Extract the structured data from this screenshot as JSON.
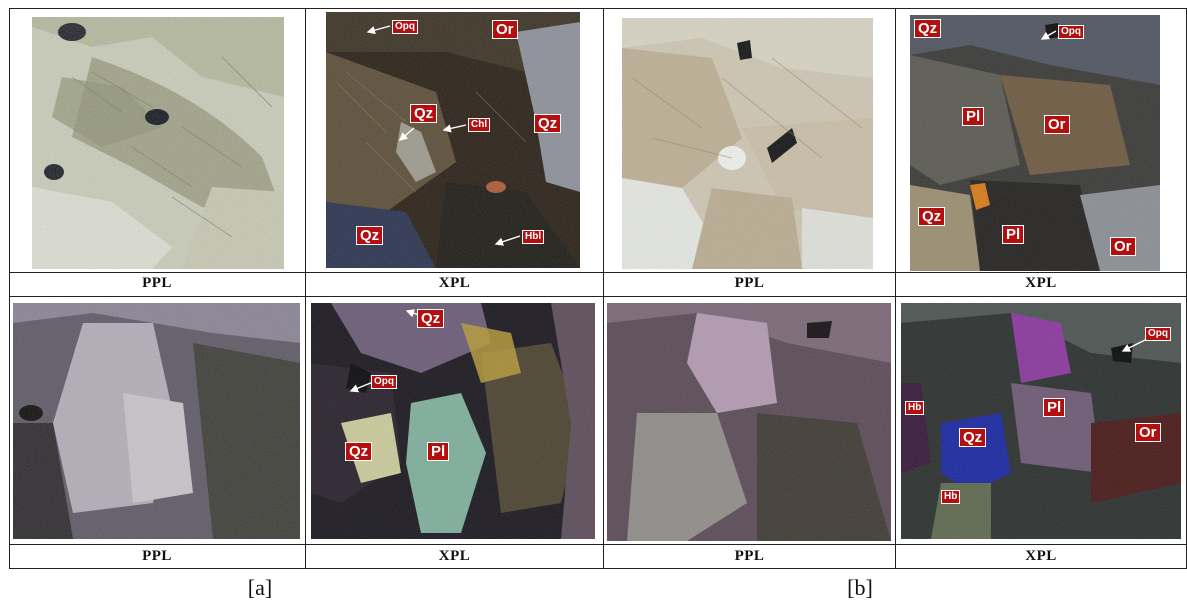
{
  "panels": [
    {
      "id": "a",
      "label": "[a]"
    },
    {
      "id": "b",
      "label": "[b]"
    }
  ],
  "captions": {
    "a_top_left": "PPL",
    "a_top_right": "XPL",
    "a_bottom_left": "PPL",
    "a_bottom_right": "XPL",
    "b_top_left": "PPL",
    "b_top_right": "XPL",
    "b_bottom_left": "PPL",
    "b_bottom_right": "XPL"
  },
  "mineral_labels": {
    "a_top_xpl": [
      "Opq",
      "Or",
      "Qz",
      "Chl",
      "Qz",
      "Qz",
      "Hbl"
    ],
    "a_bottom_xpl": [
      "Qz",
      "Opq",
      "Qz",
      "Pl"
    ],
    "b_top_xpl": [
      "Qz",
      "Opq",
      "Pl",
      "Or",
      "Qz",
      "Pl",
      "Or"
    ],
    "b_bottom_xpl": [
      "Opq",
      "Hb",
      "Pl",
      "Qz",
      "Or",
      "Hb"
    ]
  },
  "colors": {
    "label_background": "#b30f0f",
    "label_text": "#ffffff",
    "table_lines": "#222222"
  }
}
